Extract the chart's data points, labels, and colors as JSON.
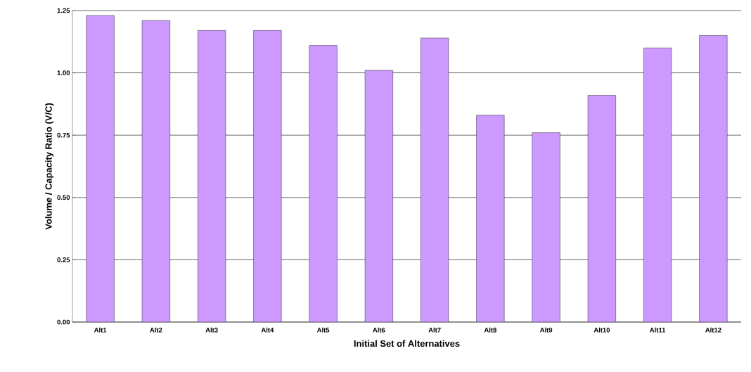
{
  "chart_data": {
    "type": "bar",
    "xlabel": "Initial Set of Alternatives",
    "ylabel": "Volume / Capacity Ratio (V/C)",
    "categories": [
      "Alt1",
      "Alt2",
      "Alt3",
      "Alt4",
      "Alt5",
      "Alt6",
      "Alt7",
      "Alt8",
      "Alt9",
      "Alt10",
      "Alt11",
      "Alt12"
    ],
    "values": [
      1.23,
      1.21,
      1.17,
      1.17,
      1.11,
      1.01,
      1.14,
      0.83,
      0.76,
      0.91,
      1.1,
      1.15
    ],
    "color": "#cc99ff",
    "ylim": [
      0,
      1.25
    ],
    "yticks": [
      {
        "value": 0,
        "label": "0.00"
      },
      {
        "value": 0.25,
        "label": "0.25"
      },
      {
        "value": 0.5,
        "label": "0.50"
      },
      {
        "value": 0.75,
        "label": "0.75"
      },
      {
        "value": 1,
        "label": "1.00"
      },
      {
        "value": 1.25,
        "label": "1.25"
      }
    ],
    "grid": "y"
  }
}
